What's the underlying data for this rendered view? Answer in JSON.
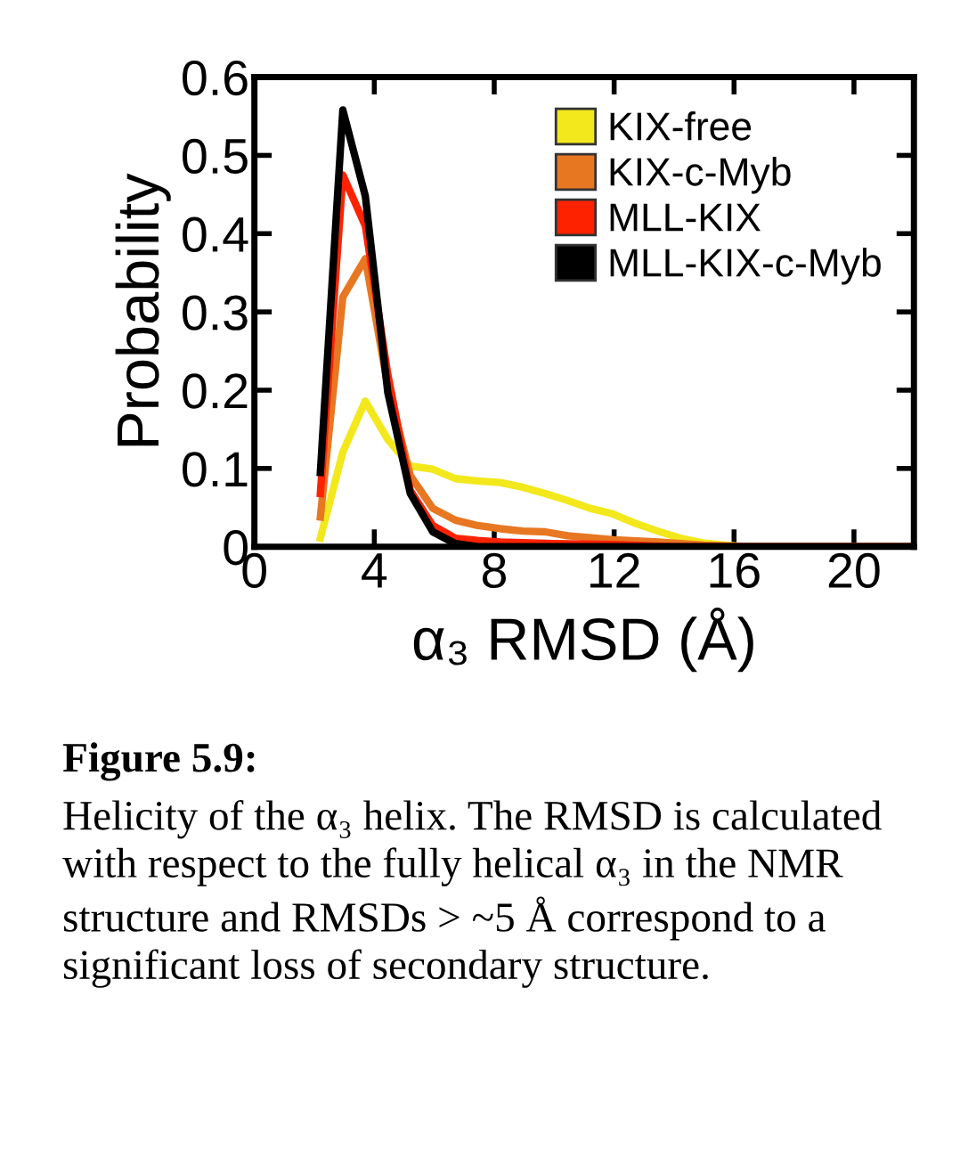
{
  "chart_data": {
    "type": "line",
    "xlabel": "α₃ RMSD (Å)",
    "ylabel": "Probability",
    "xlim": [
      0,
      22
    ],
    "xticks": [
      0,
      4,
      8,
      12,
      16,
      20
    ],
    "ylim": [
      0,
      0.6
    ],
    "yticks": [
      {
        "value": 0,
        "label": "0"
      },
      0.1,
      0.2,
      0.3,
      0.4,
      0.5,
      0.6
    ],
    "grid": false,
    "legend": "top right",
    "marker": "none",
    "line_style": "solid",
    "series": [
      {
        "name": "KIX-free",
        "color": "#f2e81c",
        "x": [
          2.2,
          2.95,
          3.7,
          4.45,
          5.2,
          5.95,
          6.7,
          7.45,
          8.2,
          8.95,
          9.7,
          10.45,
          11.2,
          11.95,
          12.7,
          13.45,
          14.2,
          14.95,
          15.7,
          16.45,
          22
        ],
        "values": [
          0.011,
          0.121,
          0.186,
          0.137,
          0.103,
          0.099,
          0.087,
          0.084,
          0.082,
          0.076,
          0.068,
          0.059,
          0.049,
          0.042,
          0.03,
          0.02,
          0.011,
          0.005,
          0.002,
          0,
          0
        ]
      },
      {
        "name": "KIX-c-Myb",
        "color": "#e87722",
        "x": [
          2.2,
          2.95,
          3.7,
          4.45,
          5.2,
          5.95,
          6.7,
          7.45,
          8.2,
          8.95,
          9.7,
          10.45,
          12,
          13.5,
          15,
          16.5,
          22
        ],
        "values": [
          0.038,
          0.319,
          0.368,
          0.205,
          0.091,
          0.049,
          0.034,
          0.027,
          0.023,
          0.02,
          0.019,
          0.014,
          0.009,
          0.006,
          0.002,
          0,
          0
        ]
      },
      {
        "name": "MLL-KIX",
        "color": "#ff2200",
        "x": [
          2.2,
          2.95,
          3.7,
          4.45,
          5.2,
          5.95,
          6.7,
          7.45,
          8.2,
          10,
          12,
          14,
          22
        ],
        "values": [
          0.068,
          0.475,
          0.41,
          0.22,
          0.072,
          0.027,
          0.011,
          0.008,
          0.006,
          0.004,
          0.003,
          0,
          0
        ]
      },
      {
        "name": "MLL-KIX-c-Myb",
        "color": "#000000",
        "x": [
          2.2,
          2.95,
          3.7,
          4.45,
          5.2,
          5.95,
          6.7,
          7.45,
          22
        ],
        "values": [
          0.095,
          0.558,
          0.448,
          0.197,
          0.068,
          0.019,
          0.004,
          0,
          0
        ]
      }
    ],
    "annotations": [
      "Figure 5.9:",
      "Helicity of the α₃ helix. The RMSD is calculated with respect to the fully helical α₃ in the NMR structure and RMSDs > ~5 Å correspond to a significant loss of secondary structure."
    ]
  }
}
